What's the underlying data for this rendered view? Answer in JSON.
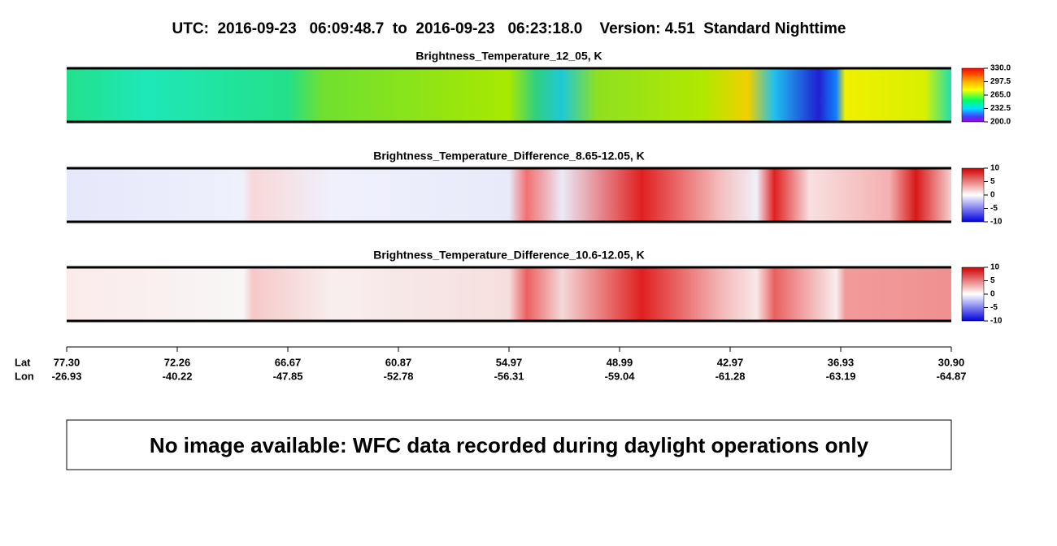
{
  "title": "UTC:  2016-09-23   06:09:48.7  to  2016-09-23   06:23:18.0    Version: 4.51  Standard Nighttime",
  "panels": [
    {
      "title": "Brightness_Temperature_12_05, K",
      "colorbar": [
        "330.0",
        "297.5",
        "265.0",
        "232.5",
        "200.0"
      ]
    },
    {
      "title": "Brightness_Temperature_Difference_8.65-12.05, K",
      "colorbar": [
        "10",
        "5",
        "0",
        "-5",
        "-10"
      ]
    },
    {
      "title": "Brightness_Temperature_Difference_10.6-12.05, K",
      "colorbar": [
        "10",
        "5",
        "0",
        "-5",
        "-10"
      ]
    }
  ],
  "axis": {
    "lat_label": "Lat",
    "lon_label": "Lon",
    "ticks": [
      {
        "lat": "77.30",
        "lon": "-26.93"
      },
      {
        "lat": "72.26",
        "lon": "-40.22"
      },
      {
        "lat": "66.67",
        "lon": "-47.85"
      },
      {
        "lat": "60.87",
        "lon": "-52.78"
      },
      {
        "lat": "54.97",
        "lon": "-56.31"
      },
      {
        "lat": "48.99",
        "lon": "-59.04"
      },
      {
        "lat": "42.97",
        "lon": "-61.28"
      },
      {
        "lat": "36.93",
        "lon": "-63.19"
      },
      {
        "lat": "30.90",
        "lon": "-64.87"
      }
    ]
  },
  "message": "No image available: WFC data recorded during daylight operations only"
}
